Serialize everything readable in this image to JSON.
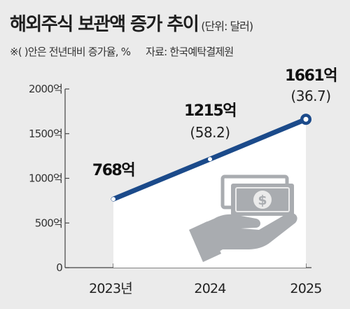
{
  "header": {
    "title": "해외주식 보관액 증가 추이",
    "unit": "(단위: 달러)",
    "note": "※( )안은 전년대비 증가율, %",
    "source": "자료: 한국예탁결제원"
  },
  "colors": {
    "line": "#1b4a8a",
    "area": "#ffffff",
    "background": "#ebebeb",
    "icon": "#a9acb0"
  },
  "icon": "money-hand-icon",
  "chart_data": {
    "type": "line",
    "categories": [
      "2023년",
      "2024",
      "2025"
    ],
    "values": [
      768,
      1215,
      1661
    ],
    "value_labels": [
      "768억",
      "1215억",
      "1661억"
    ],
    "growth_labels": [
      "",
      "(58.2)",
      "(36.7)"
    ],
    "ylim": [
      0,
      2000
    ],
    "yticks": [
      0,
      500,
      1000,
      1500,
      2000
    ],
    "ytick_labels": [
      "0",
      "500억",
      "1000억",
      "1500억",
      "2000억"
    ],
    "grid": false
  }
}
